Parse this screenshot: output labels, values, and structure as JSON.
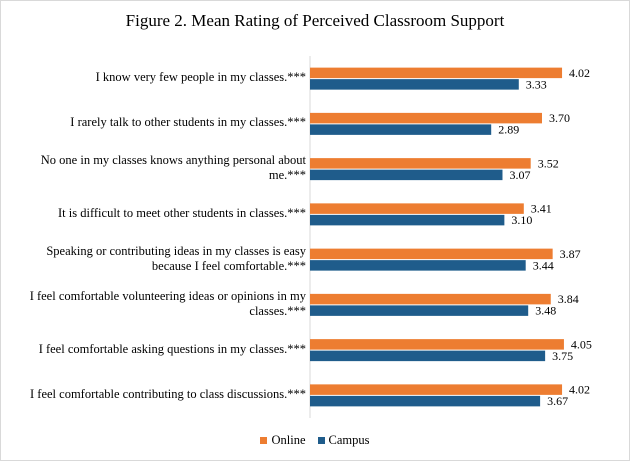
{
  "chart_data": {
    "type": "bar",
    "orientation": "horizontal",
    "title": "Figure 2. Mean Rating of Perceived Classroom Support",
    "categories": [
      "I know very few people in my classes.***",
      "I rarely talk to other students in my classes.***",
      "No one in my classes knows anything personal about me.***",
      "It is difficult to meet other students in classes.***",
      "Speaking or contributing ideas in my classes is easy because I feel comfortable.***",
      "I feel comfortable volunteering ideas or opinions in my classes.***",
      "I feel comfortable asking questions in my classes.***",
      "I feel comfortable contributing to class discussions.***"
    ],
    "category_lines": [
      [
        "I know very few people in my classes.***"
      ],
      [
        "I rarely talk to other students in my classes.***"
      ],
      [
        "No one in my classes knows anything personal about",
        "me.***"
      ],
      [
        "It is difficult to meet other students in classes.***"
      ],
      [
        "Speaking or contributing ideas in my classes is easy",
        "because I feel comfortable.***"
      ],
      [
        "I feel comfortable volunteering ideas or opinions in my",
        "classes.***"
      ],
      [
        "I feel comfortable asking questions in my classes.***"
      ],
      [
        "I feel comfortable contributing to class discussions.***"
      ]
    ],
    "series": [
      {
        "name": "Online",
        "color": "#ED7D31",
        "values": [
          4.02,
          3.7,
          3.52,
          3.41,
          3.87,
          3.84,
          4.05,
          4.02
        ]
      },
      {
        "name": "Campus",
        "color": "#1F5C8B",
        "values": [
          3.33,
          2.89,
          3.07,
          3.1,
          3.44,
          3.48,
          3.75,
          3.67
        ]
      }
    ],
    "data_labels": true,
    "legend_position": "bottom",
    "grid": false
  }
}
